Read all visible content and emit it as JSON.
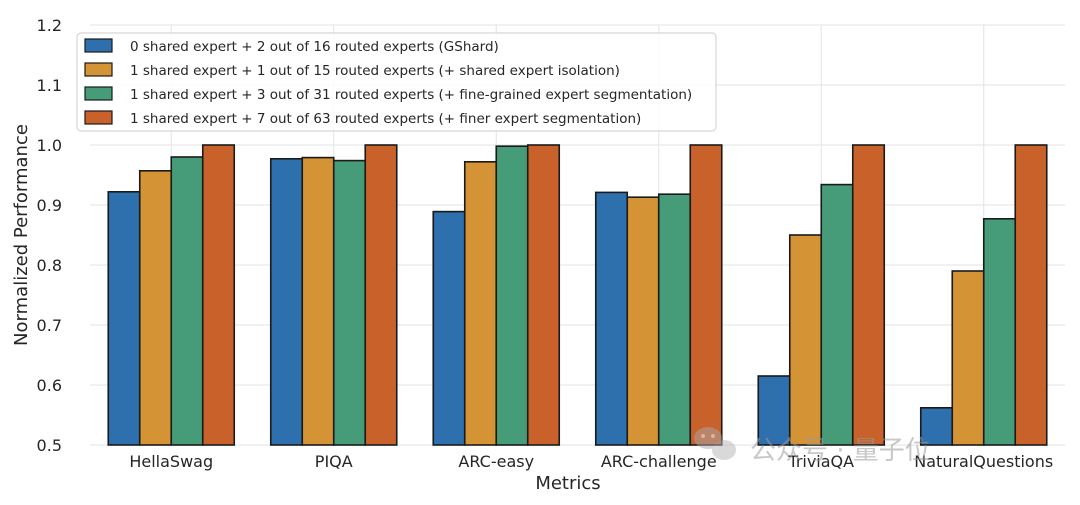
{
  "chart_data": {
    "type": "bar",
    "title": "",
    "xlabel": "Metrics",
    "ylabel": "Normalized Performance",
    "ylim": [
      0.5,
      1.2
    ],
    "yticks": [
      "0.5",
      "0.6",
      "0.7",
      "0.8",
      "0.9",
      "1.0",
      "1.1",
      "1.2"
    ],
    "grid": true,
    "legend_position": "top-left",
    "categories": [
      "HellaSwag",
      "PIQA",
      "ARC-easy",
      "ARC-challenge",
      "TriviaQA",
      "NaturalQuestions"
    ],
    "series": [
      {
        "name": "0 shared expert + 2 out of 16 routed experts (GShard)",
        "color": "#2e6fad",
        "values": [
          0.922,
          0.977,
          0.889,
          0.921,
          0.615,
          0.562
        ]
      },
      {
        "name": "1 shared expert + 1 out of 15 routed experts (+ shared expert isolation)",
        "color": "#d49334",
        "values": [
          0.957,
          0.979,
          0.972,
          0.913,
          0.85,
          0.79
        ]
      },
      {
        "name": "1 shared expert + 3 out of 31 routed experts (+ fine-grained expert segmentation)",
        "color": "#469b79",
        "values": [
          0.98,
          0.974,
          0.998,
          0.918,
          0.934,
          0.877
        ]
      },
      {
        "name": "1 shared expert + 7 out of 63 routed experts (+ finer expert segmentation)",
        "color": "#c8622a",
        "values": [
          1.0,
          1.0,
          1.0,
          1.0,
          1.0,
          1.0
        ]
      }
    ]
  },
  "watermark": {
    "text": "公众号 · 量子位",
    "icon": "wechat-icon"
  }
}
